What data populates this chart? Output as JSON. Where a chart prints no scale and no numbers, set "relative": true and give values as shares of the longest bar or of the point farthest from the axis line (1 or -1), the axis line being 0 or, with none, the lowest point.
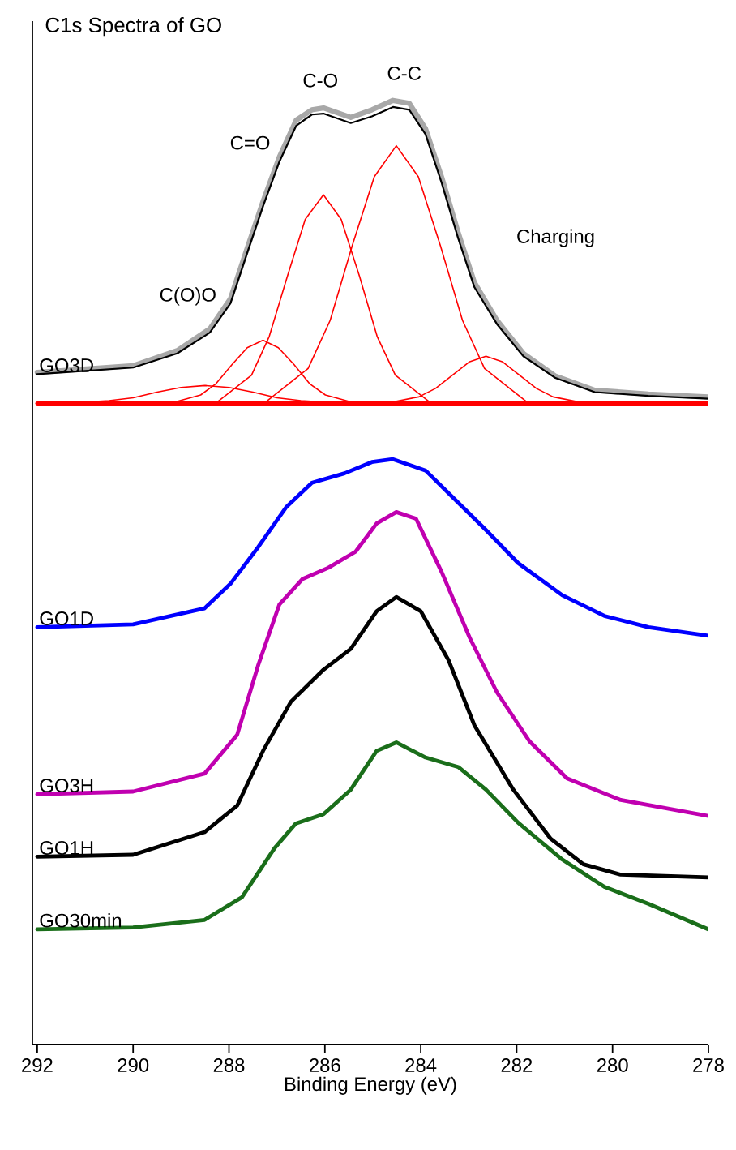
{
  "chart_data": {
    "type": "line",
    "title": "C1s Spectra of GO",
    "xlabel": "Binding Energy (eV)",
    "relative": true,
    "xlim": [
      292.1,
      278
    ],
    "xticks": [
      292,
      290,
      288,
      286,
      284,
      282,
      280,
      278
    ],
    "series": [
      {
        "color": "#a8a8a8",
        "x": [
          292.0,
          290.0,
          289.08,
          288.4,
          287.97,
          287.63,
          287.29,
          286.95,
          286.6,
          286.27,
          286.03,
          285.46,
          285.02,
          284.58,
          284.24,
          283.9,
          283.56,
          283.22,
          282.88,
          282.41,
          281.86,
          281.19,
          280.37,
          279.25,
          278.0
        ],
        "values": [
          0.712,
          0.719,
          0.735,
          0.758,
          0.79,
          0.842,
          0.893,
          0.94,
          0.979,
          0.99,
          0.992,
          0.982,
          0.99,
          1.0,
          0.997,
          0.97,
          0.918,
          0.86,
          0.807,
          0.767,
          0.732,
          0.708,
          0.693,
          0.689,
          0.686
        ]
      },
      {
        "name": "GO3D",
        "color": "#000000",
        "x": [
          292.0,
          290.0,
          289.08,
          288.4,
          287.97,
          287.63,
          287.29,
          286.95,
          286.6,
          286.27,
          286.03,
          285.46,
          285.02,
          284.58,
          284.24,
          283.9,
          283.56,
          283.22,
          282.88,
          282.41,
          281.86,
          281.19,
          280.37,
          279.25,
          278.0
        ],
        "values": [
          0.71,
          0.717,
          0.732,
          0.754,
          0.785,
          0.837,
          0.888,
          0.935,
          0.973,
          0.985,
          0.986,
          0.976,
          0.983,
          0.993,
          0.99,
          0.964,
          0.912,
          0.854,
          0.802,
          0.763,
          0.729,
          0.706,
          0.691,
          0.687,
          0.684
        ]
      },
      {
        "color": "#ff0000",
        "x": [
          292.0,
          278.0
        ],
        "values": [
          0.679,
          0.679
        ]
      },
      {
        "color": "#ff0000",
        "x": [
          291.5,
          290.5,
          290.0,
          289.5,
          289.0,
          288.5,
          288.0,
          287.5,
          287.0,
          286.5,
          285.5
        ],
        "values": [
          0.679,
          0.682,
          0.685,
          0.691,
          0.696,
          0.698,
          0.696,
          0.691,
          0.685,
          0.682,
          0.679
        ]
      },
      {
        "color": "#ff0000",
        "x": [
          289.24,
          288.59,
          288.27,
          287.94,
          287.62,
          287.29,
          286.97,
          286.64,
          286.32,
          285.99,
          285.34
        ],
        "values": [
          0.679,
          0.688,
          0.7,
          0.72,
          0.738,
          0.746,
          0.738,
          0.72,
          0.7,
          0.688,
          0.679
        ]
      },
      {
        "color": "#ff0000",
        "x": [
          288.28,
          287.53,
          287.16,
          286.78,
          286.41,
          286.03,
          285.66,
          285.28,
          284.91,
          284.53,
          283.78
        ],
        "values": [
          0.679,
          0.709,
          0.75,
          0.814,
          0.874,
          0.9,
          0.874,
          0.814,
          0.75,
          0.709,
          0.679
        ]
      },
      {
        "color": "#ff0000",
        "x": [
          287.27,
          286.35,
          285.89,
          285.43,
          284.97,
          284.51,
          284.05,
          283.59,
          283.13,
          282.67,
          281.75
        ],
        "values": [
          0.679,
          0.716,
          0.767,
          0.846,
          0.919,
          0.952,
          0.919,
          0.846,
          0.767,
          0.716,
          0.679
        ]
      },
      {
        "color": "#ff0000",
        "x": [
          284.74,
          284.04,
          283.69,
          283.34,
          282.99,
          282.64,
          282.29,
          281.94,
          281.59,
          281.24,
          280.54
        ],
        "values": [
          0.679,
          0.686,
          0.695,
          0.709,
          0.723,
          0.729,
          0.723,
          0.709,
          0.695,
          0.686,
          0.679
        ]
      },
      {
        "name": "GO1D",
        "color": "#0000ff",
        "x": [
          292.0,
          290.0,
          288.51,
          287.97,
          287.39,
          286.81,
          286.27,
          285.59,
          285.02,
          284.58,
          283.9,
          283.22,
          282.64,
          281.97,
          281.05,
          280.17,
          279.25,
          278.0
        ],
        "values": [
          0.442,
          0.445,
          0.462,
          0.488,
          0.527,
          0.569,
          0.595,
          0.605,
          0.617,
          0.62,
          0.608,
          0.574,
          0.545,
          0.51,
          0.476,
          0.454,
          0.442,
          0.433
        ]
      },
      {
        "name": "GO3H",
        "color": "#c000b0",
        "x": [
          292.0,
          290.0,
          288.51,
          287.83,
          287.39,
          286.95,
          286.47,
          285.93,
          285.36,
          284.92,
          284.51,
          284.1,
          283.56,
          282.98,
          282.41,
          281.73,
          280.95,
          279.83,
          278.0
        ],
        "values": [
          0.265,
          0.268,
          0.287,
          0.328,
          0.402,
          0.466,
          0.493,
          0.505,
          0.522,
          0.552,
          0.564,
          0.557,
          0.5,
          0.431,
          0.373,
          0.321,
          0.282,
          0.259,
          0.242
        ]
      },
      {
        "name": "GO1H",
        "color": "#000000",
        "x": [
          292.0,
          290.0,
          288.51,
          287.83,
          287.29,
          286.71,
          286.03,
          285.46,
          284.92,
          284.51,
          284.0,
          283.42,
          282.88,
          282.07,
          281.29,
          280.61,
          279.83,
          278.0
        ],
        "values": [
          0.199,
          0.201,
          0.225,
          0.253,
          0.311,
          0.363,
          0.397,
          0.419,
          0.459,
          0.474,
          0.459,
          0.407,
          0.338,
          0.27,
          0.218,
          0.191,
          0.18,
          0.177
        ]
      },
      {
        "name": "GO30min",
        "color": "#1a6e1a",
        "x": [
          292.0,
          290.0,
          288.51,
          287.73,
          287.05,
          286.61,
          286.03,
          285.46,
          284.92,
          284.51,
          283.9,
          283.22,
          282.64,
          281.97,
          281.05,
          280.17,
          279.25,
          278.0
        ],
        "values": [
          0.122,
          0.124,
          0.132,
          0.156,
          0.208,
          0.234,
          0.244,
          0.27,
          0.311,
          0.32,
          0.304,
          0.294,
          0.27,
          0.235,
          0.196,
          0.167,
          0.149,
          0.122
        ]
      }
    ],
    "annotations": [
      "C(O)O",
      "C=O",
      "C-O",
      "C-C",
      "Charging"
    ]
  }
}
